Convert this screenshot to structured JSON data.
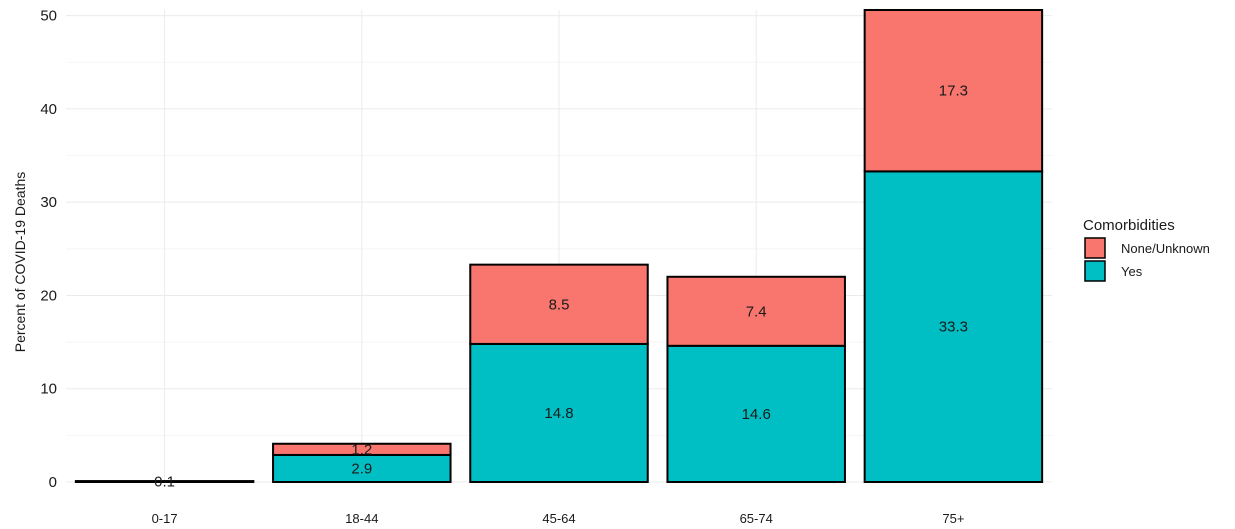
{
  "chart_data": {
    "type": "bar",
    "stacked": true,
    "categories": [
      "0-17",
      "18-44",
      "45-64",
      "65-74",
      "75+"
    ],
    "series": [
      {
        "name": "Yes",
        "color": "#00BFC4",
        "values": [
          0.1,
          2.9,
          14.8,
          14.6,
          33.3
        ]
      },
      {
        "name": "None/Unknown",
        "color": "#F8766D",
        "values": [
          0.0,
          1.2,
          8.5,
          7.4,
          17.3
        ]
      }
    ],
    "data_labels": {
      "Yes": [
        "0.1",
        "2.9",
        "14.8",
        "14.6",
        "33.3"
      ],
      "None/Unknown": [
        "",
        "1.2",
        "8.5",
        "7.4",
        "17.3"
      ]
    },
    "title": "",
    "xlabel": "",
    "ylabel": "Percent of COVID-19 Deaths",
    "ylim": [
      0,
      50.6
    ],
    "yticks": [
      0,
      10,
      20,
      30,
      40,
      50
    ],
    "grid": true,
    "legend": {
      "title": "Comorbidities",
      "placement": "right",
      "entries": [
        {
          "label": "None/Unknown",
          "color": "#F8766D"
        },
        {
          "label": "Yes",
          "color": "#00BFC4"
        }
      ]
    }
  }
}
